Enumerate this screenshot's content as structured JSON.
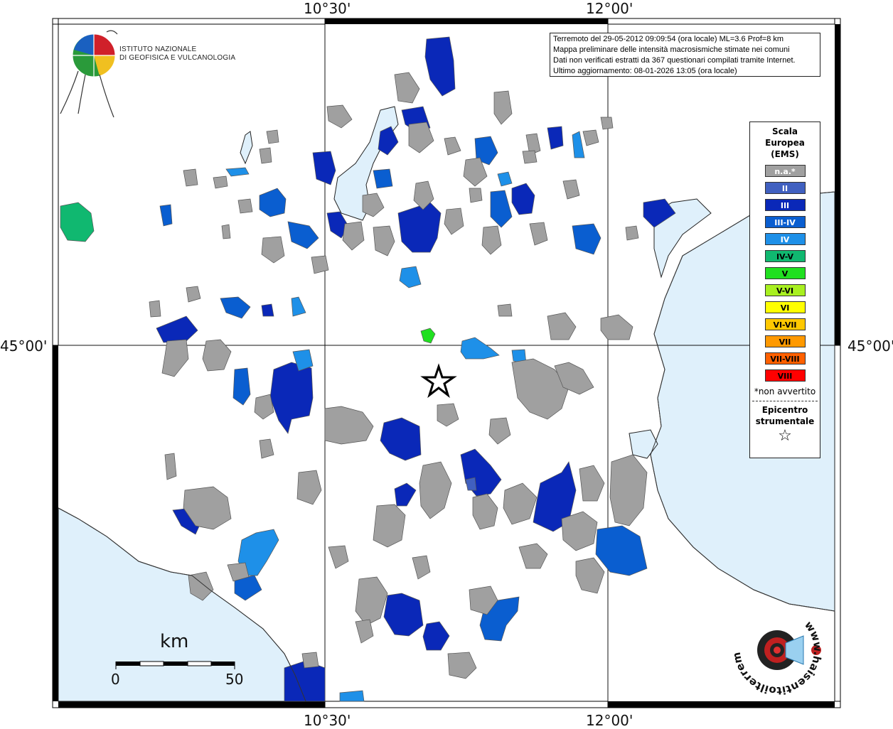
{
  "map": {
    "coords": {
      "top_left": "10°30'",
      "top_right": "12°00'",
      "bottom_left": "10°30'",
      "bottom_right": "12°00'",
      "left_mid": "45°00'",
      "right_mid": "45°00'"
    },
    "info": {
      "line1": "Terremoto del 29-05-2012 09:09:54 (ora locale) ML=3.6 Prof=8 km",
      "line2": "Mappa preliminare delle intensità macrosismiche stimate nei comuni",
      "line3": "Dati non verificati estratti da 367 questionari compilati tramite Internet.",
      "line4": "Ultimo aggiornamento: 08-01-2026 13:05 (ora locale)"
    },
    "logo": {
      "line1": "Istituto Nazionale",
      "line2": "di Geofisica e Vulcanologia"
    },
    "legend": {
      "title": "Scala Europea (EMS)",
      "items": [
        {
          "label": "n.a.*",
          "color": "#a0a0a0",
          "text_color": "#ffffff"
        },
        {
          "label": "II",
          "color": "#4060c0",
          "text_color": "#ffffff"
        },
        {
          "label": "III",
          "color": "#0a28b8",
          "text_color": "#ffffff"
        },
        {
          "label": "III-IV",
          "color": "#0a5ed0",
          "text_color": "#ffffff"
        },
        {
          "label": "IV",
          "color": "#1e90e8",
          "text_color": "#ffffff"
        },
        {
          "label": "IV-V",
          "color": "#10b870",
          "text_color": "#000000"
        },
        {
          "label": "V",
          "color": "#20e020",
          "text_color": "#000000"
        },
        {
          "label": "V-VI",
          "color": "#a8f020",
          "text_color": "#000000"
        },
        {
          "label": "VI",
          "color": "#ffff00",
          "text_color": "#000000"
        },
        {
          "label": "VI-VII",
          "color": "#ffc800",
          "text_color": "#000000"
        },
        {
          "label": "VII",
          "color": "#ff9900",
          "text_color": "#000000"
        },
        {
          "label": "VII-VIII",
          "color": "#ff6000",
          "text_color": "#000000"
        },
        {
          "label": "VIII",
          "color": "#ff0000",
          "text_color": "#000000"
        }
      ],
      "note": "*non avvertito",
      "epicenter_label": "Epicentro strumentale",
      "star_symbol": "☆"
    },
    "scale": {
      "unit": "km",
      "start": "0",
      "end": "50"
    },
    "brand": {
      "text": "www.haisentitoilterremoto.it"
    },
    "colors": {
      "sea": "#dff0fb",
      "na": "#a0a0a0",
      "ii": "#4060c0",
      "iii": "#0a28b8",
      "iii_iv": "#0a5ed0",
      "iv": "#1e90e8",
      "iv_v": "#10b870",
      "v": "#20e020"
    }
  }
}
